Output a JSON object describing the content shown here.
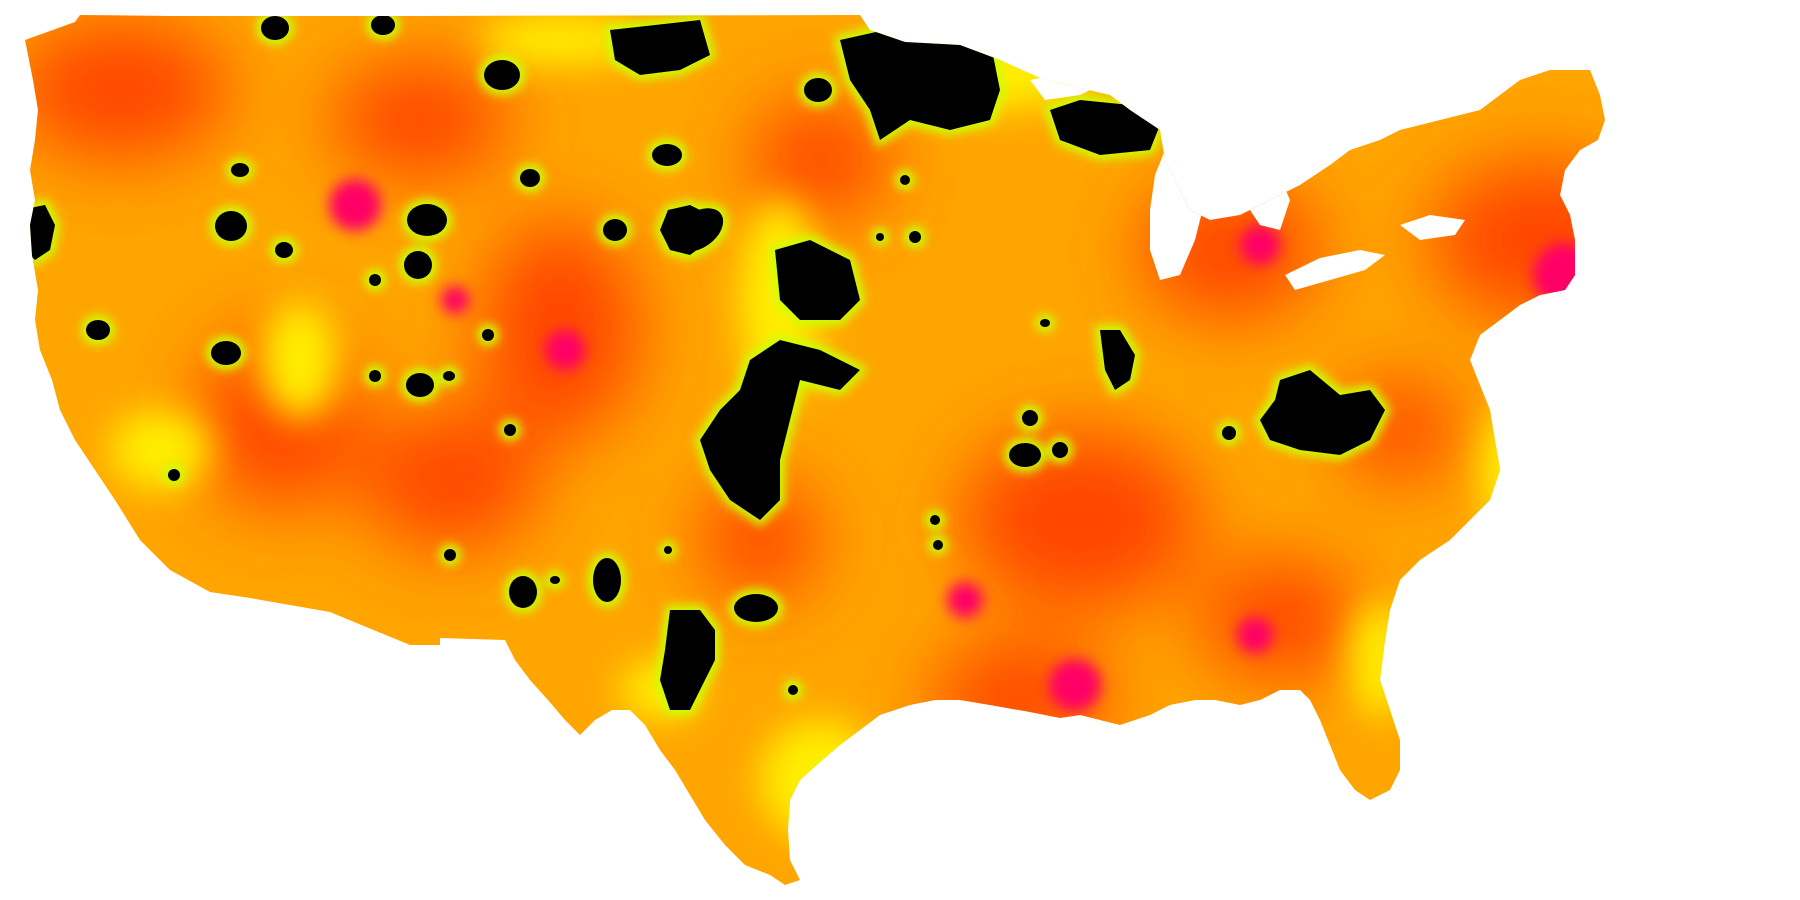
{
  "map": {
    "subject": "contiguous-united-states",
    "rendering": "interpolated-heat-surface",
    "background_color": "#ffffff",
    "color_scale": [
      "#000000",
      "#ccff00",
      "#ffee00",
      "#ffcc00",
      "#ffa500",
      "#ff7f00",
      "#ff4500",
      "#ff1a1a",
      "#ff0066"
    ],
    "base_fill": "#ffa500",
    "land_fill": "#ffb300",
    "gap_color": "#000000",
    "halo_color": "#ccff00",
    "hotspot_color": "#ff0066",
    "warm_color": "#ff4500",
    "lake_color": "#ffffff"
  }
}
